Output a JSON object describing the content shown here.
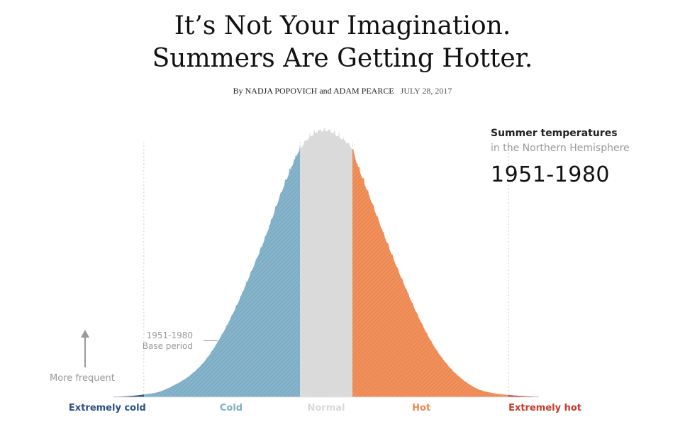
{
  "header": {
    "title_line1": "It’s Not Your Imagination.",
    "title_line2": "Summers Are Getting Hotter.",
    "byline": "By NADJA POPOVICH and ADAM PEARCE",
    "date": "JULY 28, 2017"
  },
  "side_panel": {
    "title": "Summer temperatures",
    "subtitle": "in the Northern Hemisphere",
    "period": "1951-1980"
  },
  "annotations": {
    "base_period_line1": "1951-1980",
    "base_period_line2": "Base period",
    "more_frequent": "More frequent",
    "arrow_icon": "up-arrow-icon"
  },
  "colors": {
    "extremely_cold": "#2c4f85",
    "cold": "#7eaec6",
    "normal": "#d9d9d9",
    "hot": "#ee8952",
    "extremely_hot": "#c8392a"
  },
  "chart_data": {
    "type": "area",
    "title": "",
    "xlabel": "",
    "ylabel": "",
    "xlim": [
      -3.5,
      3.5
    ],
    "x_unit": "standard deviations from 1951-1980 mean",
    "grid": "dotted vertical lines at category boundaries",
    "boundaries": [
      -3,
      -0.43,
      0.43,
      3
    ],
    "x": [
      -3.5,
      -3.25,
      -3.0,
      -2.75,
      -2.5,
      -2.25,
      -2.0,
      -1.75,
      -1.5,
      -1.25,
      -1.0,
      -0.75,
      -0.5,
      -0.43,
      -0.25,
      0.0,
      0.25,
      0.43,
      0.5,
      0.75,
      1.0,
      1.25,
      1.5,
      1.75,
      2.0,
      2.25,
      2.5,
      2.75,
      3.0,
      3.25,
      3.5
    ],
    "values": [
      0.002,
      0.004,
      0.01,
      0.02,
      0.045,
      0.08,
      0.135,
      0.22,
      0.33,
      0.46,
      0.6,
      0.76,
      0.9,
      0.93,
      0.98,
      1.0,
      0.97,
      0.93,
      0.88,
      0.73,
      0.58,
      0.44,
      0.31,
      0.2,
      0.12,
      0.065,
      0.03,
      0.015,
      0.008,
      0.004,
      0.002
    ],
    "categories": [
      "Extremely cold",
      "Cold",
      "Normal",
      "Hot",
      "Extremely hot"
    ]
  }
}
